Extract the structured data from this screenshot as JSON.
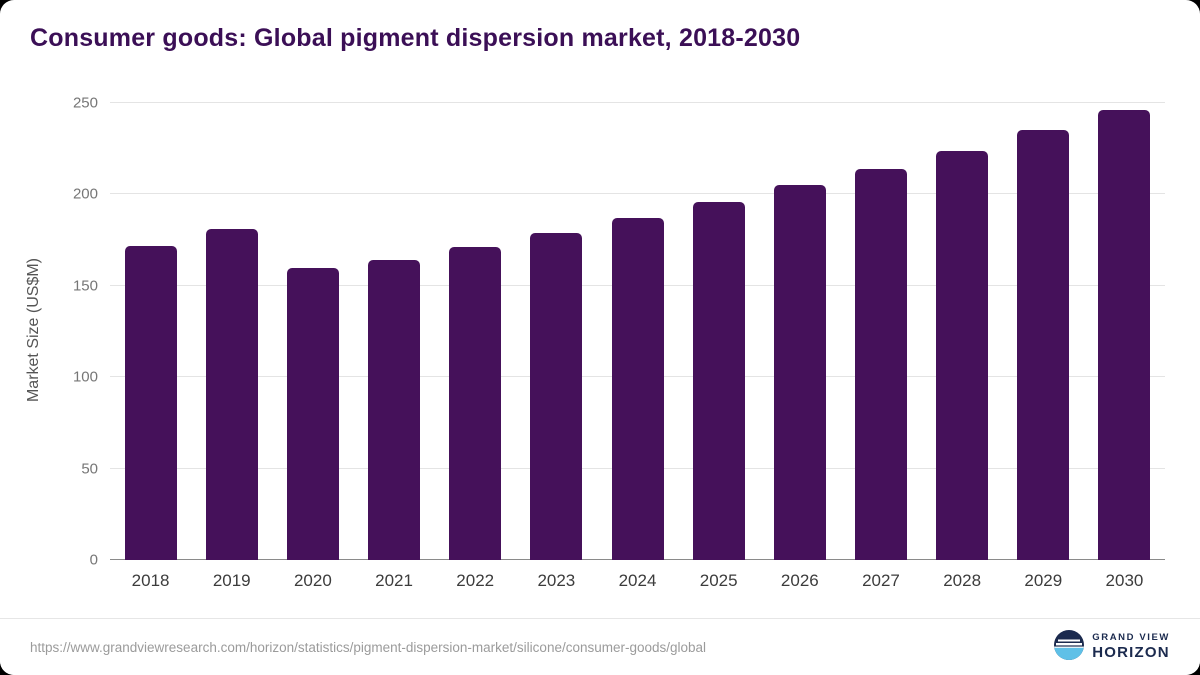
{
  "title": "Consumer goods: Global pigment dispersion market, 2018-2030",
  "chart_data": {
    "type": "bar",
    "categories": [
      "2018",
      "2019",
      "2020",
      "2021",
      "2022",
      "2023",
      "2024",
      "2025",
      "2026",
      "2027",
      "2028",
      "2029",
      "2030"
    ],
    "values": [
      172,
      181,
      160,
      164,
      171,
      179,
      187,
      196,
      205,
      214,
      224,
      235,
      246
    ],
    "title": "Consumer goods: Global pigment dispersion market, 2018-2030",
    "xlabel": "",
    "ylabel": "Market Size (US$M)",
    "ylim": [
      0,
      250
    ],
    "yticks": [
      0,
      50,
      100,
      150,
      200,
      250
    ],
    "bar_color": "#45115a",
    "grid": true,
    "legend": "none"
  },
  "footer": {
    "source_url": "https://www.grandviewresearch.com/horizon/statistics/pigment-dispersion-market/silicone/consumer-goods/global"
  },
  "logo": {
    "line1": "GRAND VIEW",
    "line2": "HORIZON",
    "navy": "#1b2a4e",
    "light_blue": "#5fc0e7"
  }
}
